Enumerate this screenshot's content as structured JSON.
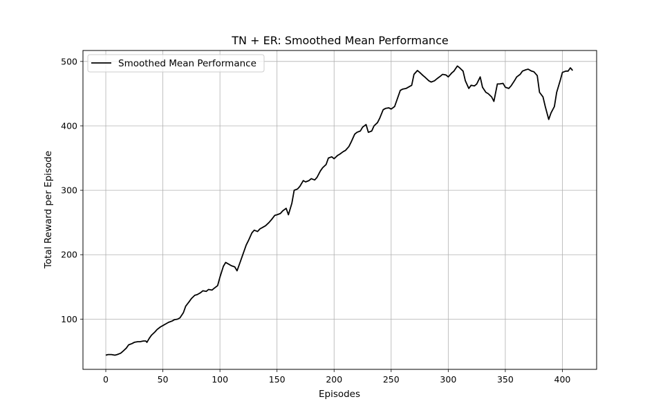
{
  "chart_data": {
    "type": "line",
    "title": "TN + ER: Smoothed Mean Performance",
    "xlabel": "Episodes",
    "ylabel": "Total Reward per Episode",
    "xlim": [
      -20,
      430
    ],
    "ylim": [
      22,
      517
    ],
    "xticks": [
      0,
      50,
      100,
      150,
      200,
      250,
      300,
      350,
      400
    ],
    "yticks": [
      100,
      200,
      300,
      400,
      500
    ],
    "grid": true,
    "legend_position": "top-left",
    "series": [
      {
        "name": "Smoothed Mean Performance",
        "color": "#000000",
        "x": [
          0,
          2,
          5,
          8,
          10,
          13,
          15,
          18,
          20,
          23,
          25,
          28,
          30,
          33,
          35,
          36,
          38,
          40,
          43,
          45,
          48,
          50,
          53,
          55,
          58,
          60,
          63,
          65,
          68,
          70,
          73,
          75,
          78,
          80,
          83,
          85,
          88,
          90,
          93,
          95,
          98,
          100,
          103,
          105,
          108,
          110,
          113,
          115,
          118,
          120,
          123,
          125,
          128,
          130,
          133,
          135,
          138,
          140,
          143,
          145,
          148,
          150,
          153,
          155,
          158,
          160,
          163,
          165,
          168,
          170,
          173,
          175,
          178,
          180,
          183,
          185,
          188,
          190,
          193,
          195,
          198,
          200,
          203,
          205,
          208,
          210,
          213,
          215,
          218,
          220,
          223,
          225,
          228,
          230,
          233,
          235,
          238,
          240,
          243,
          245,
          248,
          250,
          253,
          255,
          258,
          260,
          263,
          265,
          268,
          270,
          273,
          275,
          278,
          280,
          283,
          285,
          288,
          290,
          293,
          295,
          298,
          300,
          303,
          305,
          308,
          310,
          313,
          315,
          318,
          320,
          323,
          325,
          328,
          330,
          333,
          335,
          338,
          340,
          343,
          345,
          348,
          350,
          353,
          355,
          358,
          360,
          363,
          365,
          368,
          370,
          373,
          375,
          378,
          380,
          383,
          385,
          388,
          390,
          393,
          395,
          398,
          400,
          403,
          405,
          407,
          408,
          409
        ],
        "y": [
          44,
          45,
          45,
          44,
          45,
          47,
          50,
          55,
          60,
          62,
          64,
          65,
          65,
          66,
          66,
          64,
          70,
          75,
          80,
          84,
          88,
          90,
          93,
          95,
          97,
          99,
          100,
          102,
          110,
          120,
          127,
          132,
          137,
          138,
          141,
          144,
          143,
          146,
          145,
          148,
          152,
          165,
          182,
          188,
          185,
          183,
          181,
          175,
          190,
          200,
          215,
          222,
          234,
          238,
          236,
          240,
          243,
          245,
          250,
          254,
          261,
          262,
          264,
          268,
          272,
          262,
          280,
          300,
          302,
          306,
          315,
          313,
          315,
          318,
          316,
          320,
          330,
          335,
          340,
          350,
          352,
          349,
          354,
          356,
          360,
          362,
          368,
          375,
          387,
          390,
          392,
          398,
          402,
          390,
          392,
          400,
          405,
          412,
          425,
          427,
          428,
          426,
          430,
          440,
          455,
          457,
          458,
          460,
          463,
          480,
          486,
          483,
          478,
          475,
          470,
          468,
          470,
          473,
          477,
          480,
          479,
          476,
          482,
          485,
          493,
          490,
          485,
          470,
          458,
          463,
          462,
          465,
          476,
          460,
          452,
          450,
          445,
          438,
          465,
          465,
          466,
          460,
          458,
          462,
          470,
          476,
          480,
          485,
          487,
          488,
          485,
          484,
          478,
          452,
          445,
          430,
          410,
          420,
          430,
          452,
          470,
          483,
          485,
          485,
          490,
          488,
          486
        ]
      }
    ]
  }
}
